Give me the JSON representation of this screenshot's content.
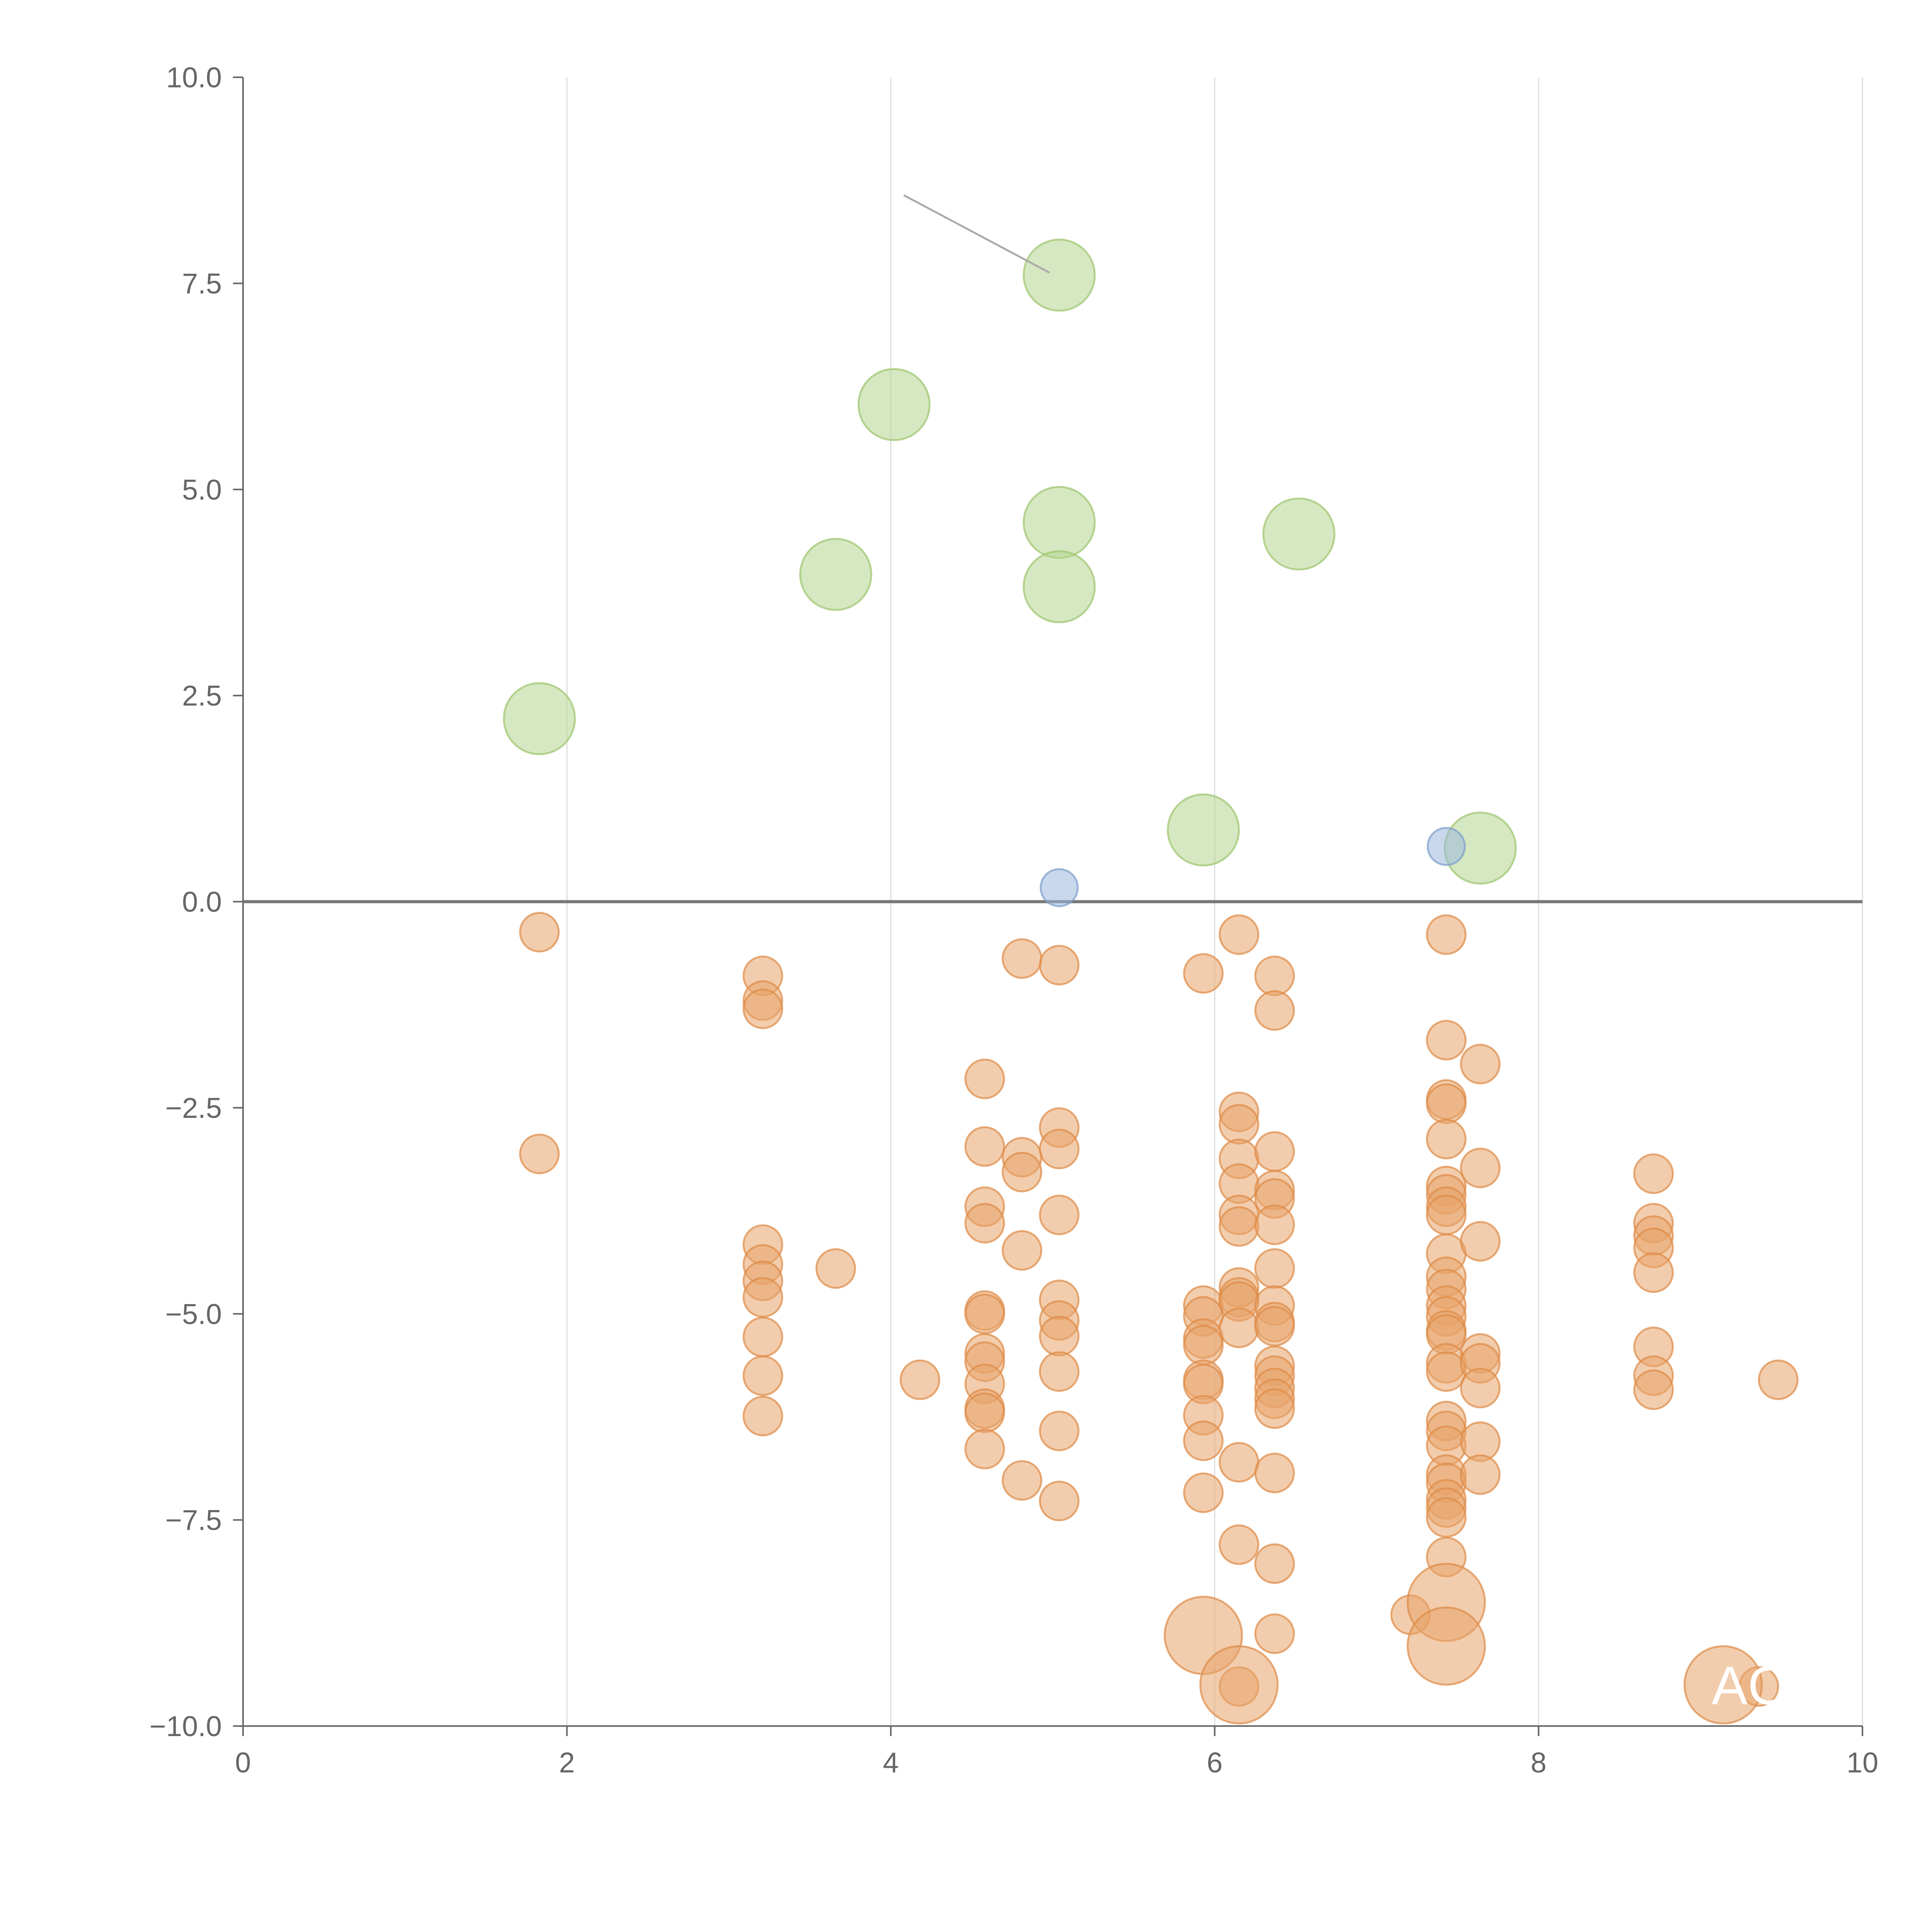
{
  "chart_data": {
    "type": "scatter",
    "title": "",
    "xlabel": "",
    "ylabel": "",
    "xlim": [
      0,
      10
    ],
    "ylim": [
      -10,
      10
    ],
    "x_ticks": [
      {
        "value": 0,
        "label": "0"
      },
      {
        "value": 2,
        "label": "2"
      },
      {
        "value": 4,
        "label": "4"
      },
      {
        "value": 6,
        "label": "6"
      },
      {
        "value": 8,
        "label": "8"
      },
      {
        "value": 10,
        "label": "10"
      }
    ],
    "y_ticks": [
      {
        "value": 10,
        "label": "10.0"
      },
      {
        "value": 7.5,
        "label": "7.5"
      },
      {
        "value": 5,
        "label": "5.0"
      },
      {
        "value": 2.5,
        "label": "2.5"
      },
      {
        "value": 0,
        "label": "0.0"
      },
      {
        "value": -2.5,
        "label": "−2.5"
      },
      {
        "value": -5,
        "label": "−5.0"
      },
      {
        "value": -7.5,
        "label": "−7.5"
      },
      {
        "value": -10,
        "label": "−10.0"
      }
    ],
    "vertical_grid": true,
    "horizontal_grid": false,
    "zero_line": 0,
    "colors": {
      "green": "#b5d58f",
      "green_stroke": "#9dc46c",
      "blue": "#9db8dd",
      "blue_stroke": "#7a9cc9",
      "orange": "#e8a46a",
      "orange_stroke": "#de8a46",
      "axis": "#666666",
      "grid": "#dddddd",
      "zero": "#777777",
      "leader": "#aaaaaa"
    },
    "series": [
      {
        "color": "green",
        "size": "large",
        "points": [
          {
            "x": 1.83,
            "y": 2.22
          },
          {
            "x": 3.66,
            "y": 3.97
          },
          {
            "x": 4.02,
            "y": 6.03
          },
          {
            "x": 5.04,
            "y": 7.6
          },
          {
            "x": 5.04,
            "y": 4.6
          },
          {
            "x": 5.04,
            "y": 3.82
          },
          {
            "x": 6.52,
            "y": 4.46
          },
          {
            "x": 5.93,
            "y": 0.87
          },
          {
            "x": 7.64,
            "y": 0.65
          }
        ]
      },
      {
        "color": "blue",
        "size": "small",
        "points": [
          {
            "x": 5.04,
            "y": 0.17
          },
          {
            "x": 7.43,
            "y": 0.67
          }
        ]
      },
      {
        "color": "orange",
        "size": "medium",
        "points": [
          {
            "x": 1.83,
            "y": -0.37
          },
          {
            "x": 1.83,
            "y": -3.06
          },
          {
            "x": 3.21,
            "y": -0.9
          },
          {
            "x": 3.21,
            "y": -1.2
          },
          {
            "x": 3.21,
            "y": -1.3
          },
          {
            "x": 3.21,
            "y": -4.16
          },
          {
            "x": 3.21,
            "y": -4.4
          },
          {
            "x": 3.21,
            "y": -4.6
          },
          {
            "x": 3.21,
            "y": -4.8
          },
          {
            "x": 3.21,
            "y": -5.28
          },
          {
            "x": 3.21,
            "y": -5.75
          },
          {
            "x": 3.21,
            "y": -6.24
          },
          {
            "x": 3.66,
            "y": -4.45
          },
          {
            "x": 4.18,
            "y": -5.8
          },
          {
            "x": 4.58,
            "y": -2.15
          },
          {
            "x": 4.58,
            "y": -2.97
          },
          {
            "x": 4.58,
            "y": -3.7
          },
          {
            "x": 4.58,
            "y": -3.9
          },
          {
            "x": 4.58,
            "y": -4.96
          },
          {
            "x": 4.58,
            "y": -5.0
          },
          {
            "x": 4.58,
            "y": -5.48
          },
          {
            "x": 4.58,
            "y": -5.58
          },
          {
            "x": 4.58,
            "y": -5.85
          },
          {
            "x": 4.58,
            "y": -6.15
          },
          {
            "x": 4.58,
            "y": -6.2
          },
          {
            "x": 4.58,
            "y": -6.64
          },
          {
            "x": 4.81,
            "y": -0.69
          },
          {
            "x": 4.81,
            "y": -3.1
          },
          {
            "x": 4.81,
            "y": -3.28
          },
          {
            "x": 4.81,
            "y": -4.23
          },
          {
            "x": 4.81,
            "y": -7.02
          },
          {
            "x": 5.04,
            "y": -0.77
          },
          {
            "x": 5.04,
            "y": -2.74
          },
          {
            "x": 5.04,
            "y": -3.0
          },
          {
            "x": 5.04,
            "y": -3.8
          },
          {
            "x": 5.04,
            "y": -4.83
          },
          {
            "x": 5.04,
            "y": -5.08
          },
          {
            "x": 5.04,
            "y": -5.27
          },
          {
            "x": 5.04,
            "y": -5.7
          },
          {
            "x": 5.04,
            "y": -6.42
          },
          {
            "x": 5.04,
            "y": -7.27
          },
          {
            "x": 5.93,
            "y": -0.87
          },
          {
            "x": 5.93,
            "y": -4.9
          },
          {
            "x": 5.93,
            "y": -5.03
          },
          {
            "x": 5.93,
            "y": -5.3
          },
          {
            "x": 5.93,
            "y": -5.38
          },
          {
            "x": 5.93,
            "y": -5.8
          },
          {
            "x": 5.93,
            "y": -5.85
          },
          {
            "x": 5.93,
            "y": -6.23
          },
          {
            "x": 5.93,
            "y": -6.54
          },
          {
            "x": 5.93,
            "y": -7.17
          },
          {
            "x": 6.15,
            "y": -0.4
          },
          {
            "x": 6.15,
            "y": -2.55
          },
          {
            "x": 6.15,
            "y": -2.7
          },
          {
            "x": 6.15,
            "y": -3.12
          },
          {
            "x": 6.15,
            "y": -3.42
          },
          {
            "x": 6.15,
            "y": -3.8
          },
          {
            "x": 6.15,
            "y": -3.94
          },
          {
            "x": 6.15,
            "y": -4.68
          },
          {
            "x": 6.15,
            "y": -4.8
          },
          {
            "x": 6.15,
            "y": -4.85
          },
          {
            "x": 6.15,
            "y": -5.17
          },
          {
            "x": 6.15,
            "y": -6.8
          },
          {
            "x": 6.15,
            "y": -7.8
          },
          {
            "x": 6.15,
            "y": -9.52
          },
          {
            "x": 6.37,
            "y": -0.9
          },
          {
            "x": 6.37,
            "y": -1.32
          },
          {
            "x": 6.37,
            "y": -3.03
          },
          {
            "x": 6.37,
            "y": -3.5
          },
          {
            "x": 6.37,
            "y": -3.6
          },
          {
            "x": 6.37,
            "y": -3.92
          },
          {
            "x": 6.37,
            "y": -4.45
          },
          {
            "x": 6.37,
            "y": -4.9
          },
          {
            "x": 6.37,
            "y": -5.1
          },
          {
            "x": 6.37,
            "y": -5.15
          },
          {
            "x": 6.37,
            "y": -5.63
          },
          {
            "x": 6.37,
            "y": -5.75
          },
          {
            "x": 6.37,
            "y": -5.9
          },
          {
            "x": 6.37,
            "y": -6.03
          },
          {
            "x": 6.37,
            "y": -6.15
          },
          {
            "x": 6.37,
            "y": -6.93
          },
          {
            "x": 6.37,
            "y": -8.03
          },
          {
            "x": 6.37,
            "y": -8.88
          },
          {
            "x": 7.21,
            "y": -8.65
          },
          {
            "x": 7.43,
            "y": -0.4
          },
          {
            "x": 7.43,
            "y": -1.68
          },
          {
            "x": 7.43,
            "y": -2.4
          },
          {
            "x": 7.43,
            "y": -2.45
          },
          {
            "x": 7.43,
            "y": -2.88
          },
          {
            "x": 7.43,
            "y": -3.45
          },
          {
            "x": 7.43,
            "y": -3.55
          },
          {
            "x": 7.43,
            "y": -3.7
          },
          {
            "x": 7.43,
            "y": -3.8
          },
          {
            "x": 7.43,
            "y": -4.27
          },
          {
            "x": 7.43,
            "y": -4.55
          },
          {
            "x": 7.43,
            "y": -4.7
          },
          {
            "x": 7.43,
            "y": -4.9
          },
          {
            "x": 7.43,
            "y": -5.03
          },
          {
            "x": 7.43,
            "y": -5.2
          },
          {
            "x": 7.43,
            "y": -5.25
          },
          {
            "x": 7.43,
            "y": -5.6
          },
          {
            "x": 7.43,
            "y": -5.7
          },
          {
            "x": 7.43,
            "y": -6.3
          },
          {
            "x": 7.43,
            "y": -6.42
          },
          {
            "x": 7.43,
            "y": -6.6
          },
          {
            "x": 7.43,
            "y": -6.95
          },
          {
            "x": 7.43,
            "y": -7.05
          },
          {
            "x": 7.43,
            "y": -7.25
          },
          {
            "x": 7.43,
            "y": -7.35
          },
          {
            "x": 7.43,
            "y": -7.47
          },
          {
            "x": 7.43,
            "y": -7.95
          },
          {
            "x": 7.64,
            "y": -1.97
          },
          {
            "x": 7.64,
            "y": -3.23
          },
          {
            "x": 7.64,
            "y": -4.12
          },
          {
            "x": 7.64,
            "y": -5.48
          },
          {
            "x": 7.64,
            "y": -5.6
          },
          {
            "x": 7.64,
            "y": -5.9
          },
          {
            "x": 7.64,
            "y": -6.55
          },
          {
            "x": 7.64,
            "y": -6.95
          },
          {
            "x": 8.71,
            "y": -3.3
          },
          {
            "x": 8.71,
            "y": -3.9
          },
          {
            "x": 8.71,
            "y": -4.05
          },
          {
            "x": 8.71,
            "y": -4.2
          },
          {
            "x": 8.71,
            "y": -4.5
          },
          {
            "x": 8.71,
            "y": -5.4
          },
          {
            "x": 8.71,
            "y": -5.75
          },
          {
            "x": 8.71,
            "y": -5.92
          },
          {
            "x": 9.48,
            "y": -5.8
          },
          {
            "x": 9.36,
            "y": -9.52
          }
        ]
      },
      {
        "color": "orange",
        "size": "xlarge",
        "points": [
          {
            "x": 5.93,
            "y": -8.9
          },
          {
            "x": 6.15,
            "y": -9.5
          },
          {
            "x": 7.43,
            "y": -8.5
          },
          {
            "x": 7.43,
            "y": -9.03
          },
          {
            "x": 9.14,
            "y": -9.5
          }
        ]
      }
    ],
    "annotations": [
      {
        "text": "AC",
        "x": 9.14,
        "y": -9.5
      }
    ],
    "leader_line": {
      "x1": 4.08,
      "y1": 8.57,
      "x2": 4.98,
      "y2": 7.63
    }
  }
}
